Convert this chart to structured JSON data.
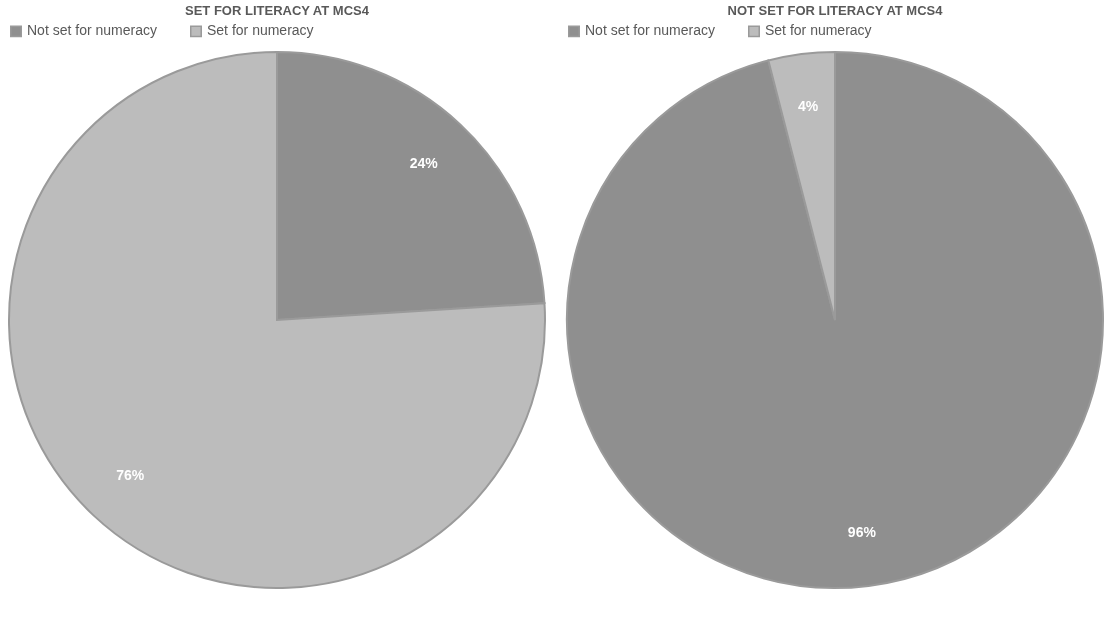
{
  "chart_data": [
    {
      "type": "pie",
      "title": "SET FOR LITERACY AT MCS4",
      "categories": [
        "Not set for numeracy",
        "Set for numeracy"
      ],
      "values": [
        24,
        76
      ],
      "colors": [
        "#8f8f8f",
        "#bcbcbc"
      ],
      "value_labels": [
        "24%",
        "76%"
      ],
      "legend": "top"
    },
    {
      "type": "pie",
      "title": "NOT SET FOR LITERACY AT MCS4",
      "categories": [
        "Not set for numeracy",
        "Set for numeracy"
      ],
      "values": [
        96,
        4
      ],
      "colors": [
        "#8f8f8f",
        "#bcbcbc"
      ],
      "value_labels": [
        "96%",
        "4%"
      ],
      "legend": "top"
    }
  ]
}
